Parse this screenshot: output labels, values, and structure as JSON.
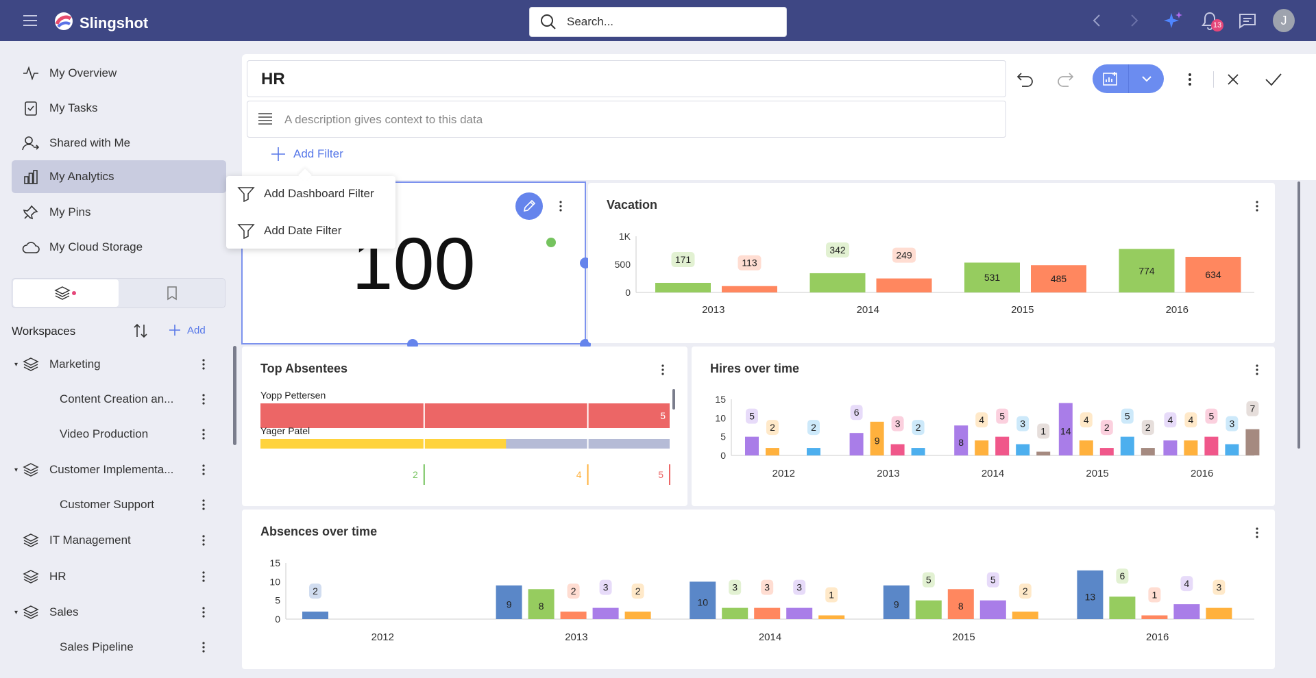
{
  "app": {
    "name": "Slingshot"
  },
  "search": {
    "placeholder": "Search..."
  },
  "header": {
    "notifications_count": "13",
    "avatar_initial": "J"
  },
  "sidebar": {
    "nav": [
      {
        "label": "My Overview",
        "icon": "activity-icon"
      },
      {
        "label": "My Tasks",
        "icon": "clipboard-check-icon"
      },
      {
        "label": "Shared with Me",
        "icon": "user-share-icon"
      },
      {
        "label": "My Analytics",
        "icon": "bar-chart-icon",
        "active": true
      },
      {
        "label": "My Pins",
        "icon": "pin-icon"
      },
      {
        "label": "My Cloud Storage",
        "icon": "cloud-icon"
      }
    ],
    "workspaces_title": "Workspaces",
    "add_label": "Add",
    "tree": [
      {
        "label": "Marketing",
        "level": 0,
        "expanded": true
      },
      {
        "label": "Content Creation an...",
        "level": 1
      },
      {
        "label": "Video Production",
        "level": 1
      },
      {
        "label": "Customer Implementa...",
        "level": 0,
        "expanded": true
      },
      {
        "label": "Customer Support",
        "level": 1
      },
      {
        "label": "IT Management",
        "level": 0
      },
      {
        "label": "HR",
        "level": 0
      },
      {
        "label": "Sales",
        "level": 0,
        "expanded": true
      },
      {
        "label": "Sales Pipeline",
        "level": 1
      }
    ]
  },
  "dashboard": {
    "title": "HR",
    "description_placeholder": "A description gives context to this data",
    "add_filter_label": "Add Filter",
    "filter_menu": [
      {
        "label": "Add Dashboard Filter"
      },
      {
        "label": "Add Date Filter"
      }
    ]
  },
  "widgets": {
    "kpi": {
      "value": "100"
    },
    "vacation": {
      "title": "Vacation"
    },
    "top_absentees": {
      "title": "Top Absentees"
    },
    "hires": {
      "title": "Hires over time"
    },
    "absences": {
      "title": "Absences over time"
    }
  },
  "colors": {
    "topbar": "#3e4784",
    "accent": "#6584ec",
    "green": "#96cc5f",
    "orange": "#ff875f",
    "purple": "#a97de8",
    "amber": "#ffb13d",
    "pink": "#f0578a",
    "sky": "#4dafee",
    "brown": "#a58a80",
    "blue": "#5a87c8",
    "red": "#ec6666",
    "yellow": "#ffd33d",
    "grey": "#b5bbd6"
  },
  "chart_data": [
    {
      "id": "vacation",
      "type": "bar",
      "title": "Vacation",
      "categories": [
        "2013",
        "2014",
        "2015",
        "2016"
      ],
      "yticks": [
        "0",
        "500",
        "1K"
      ],
      "ylim": [
        0,
        1000
      ],
      "series": [
        {
          "values": [
            171,
            342,
            531,
            774
          ],
          "color": "#96cc5f"
        },
        {
          "values": [
            113,
            249,
            485,
            634
          ],
          "color": "#ff875f"
        }
      ]
    },
    {
      "id": "top_absentees",
      "type": "bar",
      "orientation": "horizontal",
      "title": "Top Absentees",
      "rows": [
        {
          "name": "Yopp Pettersen",
          "value": 5,
          "color": "#ec6666"
        },
        {
          "name": "Yager Patel",
          "value": 3,
          "color": "#ffd33d"
        }
      ],
      "markers": [
        {
          "value": 2,
          "color": "#75c35e"
        },
        {
          "value": 4,
          "color": "#ffb13d"
        },
        {
          "value": 5,
          "color": "#ec6666"
        }
      ],
      "max": 5
    },
    {
      "id": "hires",
      "type": "bar",
      "title": "Hires over time",
      "categories": [
        "2012",
        "2013",
        "2014",
        "2015",
        "2016"
      ],
      "yticks": [
        "0",
        "5",
        "10",
        "15"
      ],
      "ylim": [
        0,
        15
      ],
      "groups": [
        [
          {
            "v": 5,
            "c": "#a97de8"
          },
          {
            "v": 2,
            "c": "#ffb13d"
          },
          {
            "v": 2,
            "c": "#4dafee"
          }
        ],
        [
          {
            "v": 6,
            "c": "#a97de8"
          },
          {
            "v": 9,
            "c": "#ffb13d"
          },
          {
            "v": 3,
            "c": "#f0578a"
          },
          {
            "v": 2,
            "c": "#4dafee"
          }
        ],
        [
          {
            "v": 8,
            "c": "#a97de8"
          },
          {
            "v": 4,
            "c": "#ffb13d"
          },
          {
            "v": 5,
            "c": "#f0578a"
          },
          {
            "v": 3,
            "c": "#4dafee"
          },
          {
            "v": 1,
            "c": "#a58a80"
          }
        ],
        [
          {
            "v": 14,
            "c": "#a97de8"
          },
          {
            "v": 4,
            "c": "#ffb13d"
          },
          {
            "v": 2,
            "c": "#f0578a"
          },
          {
            "v": 5,
            "c": "#4dafee"
          },
          {
            "v": 2,
            "c": "#a58a80"
          }
        ],
        [
          {
            "v": 4,
            "c": "#a97de8"
          },
          {
            "v": 4,
            "c": "#ffb13d"
          },
          {
            "v": 5,
            "c": "#f0578a"
          },
          {
            "v": 3,
            "c": "#4dafee"
          },
          {
            "v": 7,
            "c": "#a58a80"
          }
        ]
      ]
    },
    {
      "id": "absences",
      "type": "bar",
      "title": "Absences over time",
      "categories": [
        "2012",
        "2013",
        "2014",
        "2015",
        "2016"
      ],
      "yticks": [
        "0",
        "5",
        "10",
        "15"
      ],
      "ylim": [
        0,
        15
      ],
      "groups": [
        [
          {
            "v": 2,
            "c": "#5a87c8"
          }
        ],
        [
          {
            "v": 9,
            "c": "#5a87c8"
          },
          {
            "v": 8,
            "c": "#96cc5f"
          },
          {
            "v": 2,
            "c": "#ff875f"
          },
          {
            "v": 3,
            "c": "#a97de8"
          },
          {
            "v": 2,
            "c": "#ffb13d"
          }
        ],
        [
          {
            "v": 10,
            "c": "#5a87c8"
          },
          {
            "v": 3,
            "c": "#96cc5f"
          },
          {
            "v": 3,
            "c": "#ff875f"
          },
          {
            "v": 3,
            "c": "#a97de8"
          },
          {
            "v": 1,
            "c": "#ffb13d"
          }
        ],
        [
          {
            "v": 9,
            "c": "#5a87c8"
          },
          {
            "v": 5,
            "c": "#96cc5f"
          },
          {
            "v": 8,
            "c": "#ff875f"
          },
          {
            "v": 5,
            "c": "#a97de8"
          },
          {
            "v": 2,
            "c": "#ffb13d"
          }
        ],
        [
          {
            "v": 13,
            "c": "#5a87c8"
          },
          {
            "v": 6,
            "c": "#96cc5f"
          },
          {
            "v": 1,
            "c": "#ff875f"
          },
          {
            "v": 4,
            "c": "#a97de8"
          },
          {
            "v": 3,
            "c": "#ffb13d"
          }
        ]
      ]
    }
  ]
}
